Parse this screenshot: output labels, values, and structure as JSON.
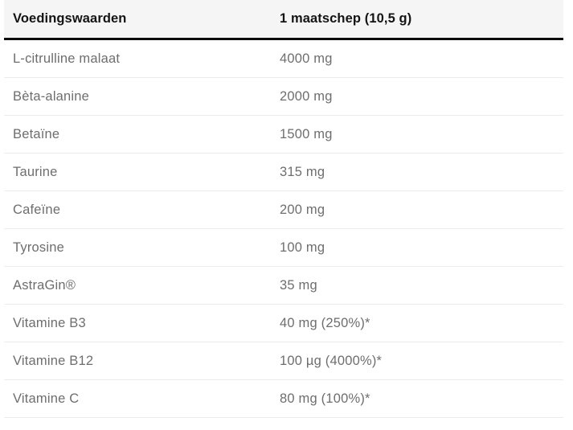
{
  "colors": {
    "page_bg": "#ffffff",
    "header_bg": "#f5f5f6",
    "header_text": "#141414",
    "header_rule": "#0c0c0c",
    "row_text": "#6e6e6e",
    "row_divider": "#ececec"
  },
  "table": {
    "columns": [
      "Voedingswaarden",
      "1 maatschep (10,5 g)"
    ],
    "rows": [
      {
        "label": "L-citrulline malaat",
        "value": "4000 mg"
      },
      {
        "label": "Bèta-alanine",
        "value": "2000 mg"
      },
      {
        "label": "Betaïne",
        "value": "1500 mg"
      },
      {
        "label": "Taurine",
        "value": "315 mg"
      },
      {
        "label": "Cafeïne",
        "value": "200 mg"
      },
      {
        "label": "Tyrosine",
        "value": "100 mg"
      },
      {
        "label": "AstraGin®",
        "value": "35 mg"
      },
      {
        "label": "Vitamine B3",
        "value": "40 mg (250%)*"
      },
      {
        "label": "Vitamine B12",
        "value": "100 µg (4000%)*"
      },
      {
        "label": "Vitamine C",
        "value": "80 mg (100%)*"
      }
    ]
  },
  "chart_data": {
    "type": "table",
    "title": "Voedingswaarden",
    "columns": [
      "Voedingswaarden",
      "1 maatschep (10,5 g)"
    ],
    "rows": [
      [
        "L-citrulline malaat",
        "4000 mg"
      ],
      [
        "Bèta-alanine",
        "2000 mg"
      ],
      [
        "Betaïne",
        "1500 mg"
      ],
      [
        "Taurine",
        "315 mg"
      ],
      [
        "Cafeïne",
        "200 mg"
      ],
      [
        "Tyrosine",
        "100 mg"
      ],
      [
        "AstraGin®",
        "35 mg"
      ],
      [
        "Vitamine B3",
        "40 mg (250%)*"
      ],
      [
        "Vitamine B12",
        "100 µg (4000%)*"
      ],
      [
        "Vitamine C",
        "80 mg (100%)*"
      ]
    ]
  }
}
